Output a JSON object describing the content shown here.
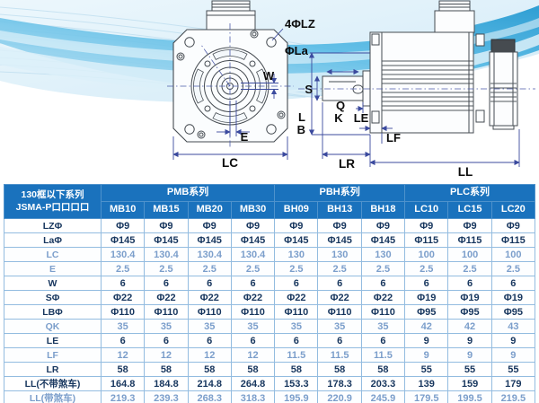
{
  "diagram": {
    "front_view": {
      "bolt_holes": "4ΦLZ",
      "flange_diameter": "ΦLa",
      "keyway_width": "W",
      "shaft_offset": "E",
      "flange_width": "LC"
    },
    "side_view": {
      "shaft_diameter": "S",
      "keyway_q": "Q",
      "keyway_k": "K",
      "pilot_depth": "LE",
      "dim_l": "L",
      "dim_b": "B",
      "flange_thickness": "LF",
      "shaft_length": "LR",
      "body_length": "LL"
    }
  },
  "table": {
    "corner_header": {
      "line1": "130框以下系列",
      "line2": "JSMA-P口口口口"
    },
    "groups": [
      {
        "label": "PMB系列",
        "span": 4
      },
      {
        "label": "PBH系列",
        "span": 3
      },
      {
        "label": "PLC系列",
        "span": 3
      }
    ],
    "models": [
      "MB10",
      "MB15",
      "MB20",
      "MB30",
      "BH09",
      "BH13",
      "BH18",
      "LC10",
      "LC15",
      "LC20"
    ],
    "rows": [
      {
        "label": "LZΦ",
        "tone": "dark",
        "values": [
          "Φ9",
          "Φ9",
          "Φ9",
          "Φ9",
          "Φ9",
          "Φ9",
          "Φ9",
          "Φ9",
          "Φ9",
          "Φ9"
        ]
      },
      {
        "label": "LaΦ",
        "tone": "dark",
        "values": [
          "Φ145",
          "Φ145",
          "Φ145",
          "Φ145",
          "Φ145",
          "Φ145",
          "Φ145",
          "Φ115",
          "Φ115",
          "Φ115"
        ]
      },
      {
        "label": "LC",
        "tone": "light",
        "values": [
          "130.4",
          "130.4",
          "130.4",
          "130.4",
          "130",
          "130",
          "130",
          "100",
          "100",
          "100"
        ]
      },
      {
        "label": "E",
        "tone": "light",
        "values": [
          "2.5",
          "2.5",
          "2.5",
          "2.5",
          "2.5",
          "2.5",
          "2.5",
          "2.5",
          "2.5",
          "2.5"
        ]
      },
      {
        "label": "W",
        "tone": "dark",
        "values": [
          "6",
          "6",
          "6",
          "6",
          "6",
          "6",
          "6",
          "6",
          "6",
          "6"
        ]
      },
      {
        "label": "SΦ",
        "tone": "dark",
        "values": [
          "Φ22",
          "Φ22",
          "Φ22",
          "Φ22",
          "Φ22",
          "Φ22",
          "Φ22",
          "Φ19",
          "Φ19",
          "Φ19"
        ]
      },
      {
        "label": "LBΦ",
        "tone": "dark",
        "values": [
          "Φ110",
          "Φ110",
          "Φ110",
          "Φ110",
          "Φ110",
          "Φ110",
          "Φ110",
          "Φ95",
          "Φ95",
          "Φ95"
        ]
      },
      {
        "label": "QK",
        "tone": "light",
        "values": [
          "35",
          "35",
          "35",
          "35",
          "35",
          "35",
          "35",
          "42",
          "42",
          "43"
        ]
      },
      {
        "label": "LE",
        "tone": "dark",
        "values": [
          "6",
          "6",
          "6",
          "6",
          "6",
          "6",
          "6",
          "9",
          "9",
          "9"
        ]
      },
      {
        "label": "LF",
        "tone": "light",
        "values": [
          "12",
          "12",
          "12",
          "12",
          "11.5",
          "11.5",
          "11.5",
          "9",
          "9",
          "9"
        ]
      },
      {
        "label": "LR",
        "tone": "dark",
        "values": [
          "58",
          "58",
          "58",
          "58",
          "58",
          "58",
          "58",
          "55",
          "55",
          "55"
        ]
      },
      {
        "label": "LL(不带煞车)",
        "tone": "dark",
        "values": [
          "164.8",
          "184.8",
          "214.8",
          "264.8",
          "153.3",
          "178.3",
          "203.3",
          "139",
          "159",
          "179"
        ]
      },
      {
        "label": "LL(带煞车)",
        "tone": "light",
        "values": [
          "219.3",
          "239.3",
          "268.3",
          "318.3",
          "195.9",
          "220.9",
          "245.9",
          "179.5",
          "199.5",
          "219.5"
        ]
      }
    ],
    "colors": {
      "header_bg": "#1a72bd",
      "dark_text": "#17365e",
      "light_text": "#7b9ecb",
      "border": "#93bce0",
      "wave_blue": "#2aa2d8"
    }
  }
}
